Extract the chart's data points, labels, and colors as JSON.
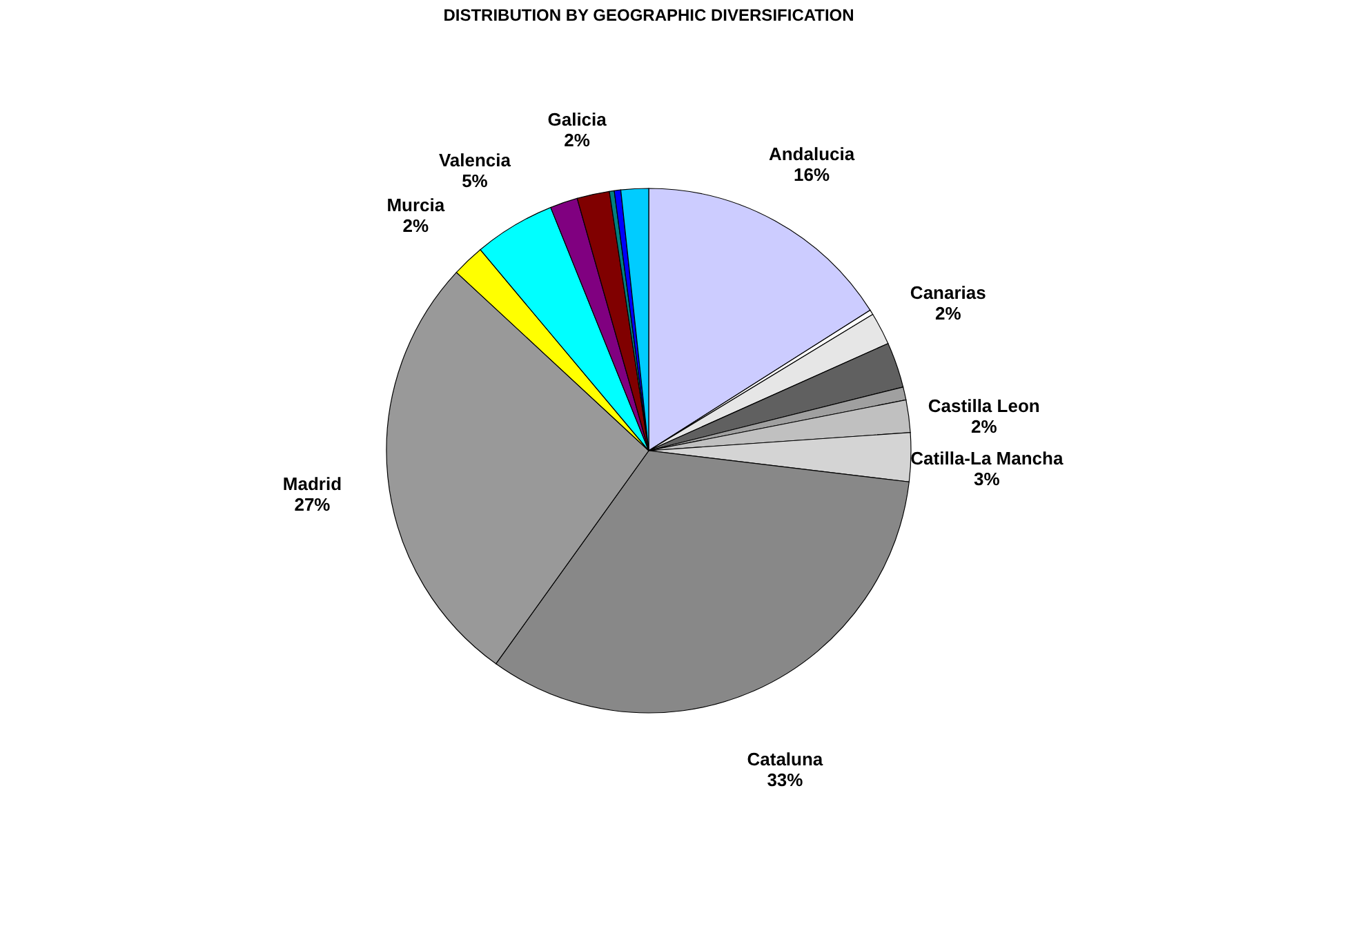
{
  "chart_data": {
    "type": "pie",
    "title": "DISTRIBUTION BY GEOGRAPHIC DIVERSIFICATION",
    "categories": [
      "Andalucia",
      null,
      "Canarias",
      null,
      null,
      "Castilla Leon",
      "Catilla-La Mancha",
      "Cataluna",
      "Madrid",
      "Murcia",
      "Valencia",
      null,
      "Galicia",
      null,
      null,
      null
    ],
    "values": [
      16,
      0.3,
      2,
      2.8,
      0.8,
      2,
      3,
      33,
      27,
      2,
      5,
      1.7,
      2,
      0.3,
      0.4,
      1.7
    ],
    "value_labels": [
      "16%",
      null,
      "2%",
      null,
      null,
      "2%",
      "3%",
      "33%",
      "27%",
      "2%",
      "5%",
      null,
      "2%",
      null,
      null,
      null
    ],
    "colors": [
      "#ccccff",
      "#ffffff",
      "#e6e6e6",
      "#606060",
      "#a0a0a0",
      "#c0c0c0",
      "#d4d4d4",
      "#888888",
      "#999999",
      "#ffff00",
      "#00ffff",
      "#800080",
      "#800000",
      "#008080",
      "#0000ff",
      "#00ccff"
    ],
    "legend": false
  }
}
